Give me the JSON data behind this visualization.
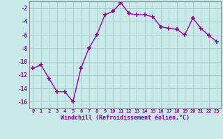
{
  "x": [
    0,
    1,
    2,
    3,
    4,
    5,
    6,
    7,
    8,
    9,
    10,
    11,
    12,
    13,
    14,
    15,
    16,
    17,
    18,
    19,
    20,
    21,
    22,
    23
  ],
  "y": [
    -11,
    -10.5,
    -12.5,
    -14.5,
    -14.5,
    -16,
    -11,
    -8,
    -6,
    -3,
    -2.5,
    -1.2,
    -2.8,
    -3,
    -3,
    -3.3,
    -4.8,
    -5,
    -5.2,
    -6,
    -3.5,
    -5,
    -6.1,
    -7
  ],
  "line_color": "#990099",
  "bg_color": "#c8eaea",
  "grid_color": "#a8cccc",
  "xlabel": "Windchill (Refroidissement éolien,°C)",
  "xlabel_color": "#880088",
  "tick_color": "#880088",
  "ylim": [
    -17,
    -1
  ],
  "xlim": [
    -0.5,
    23.5
  ],
  "yticks": [
    -16,
    -14,
    -12,
    -10,
    -8,
    -6,
    -4,
    -2
  ],
  "xtick_labels": [
    "0",
    "1",
    "2",
    "3",
    "4",
    "5",
    "6",
    "7",
    "8",
    "9",
    "10",
    "11",
    "12",
    "13",
    "14",
    "15",
    "16",
    "17",
    "18",
    "19",
    "20",
    "21",
    "22",
    "23"
  ],
  "marker": "+",
  "markersize": 4,
  "markeredgewidth": 1.2,
  "linewidth": 1.0
}
